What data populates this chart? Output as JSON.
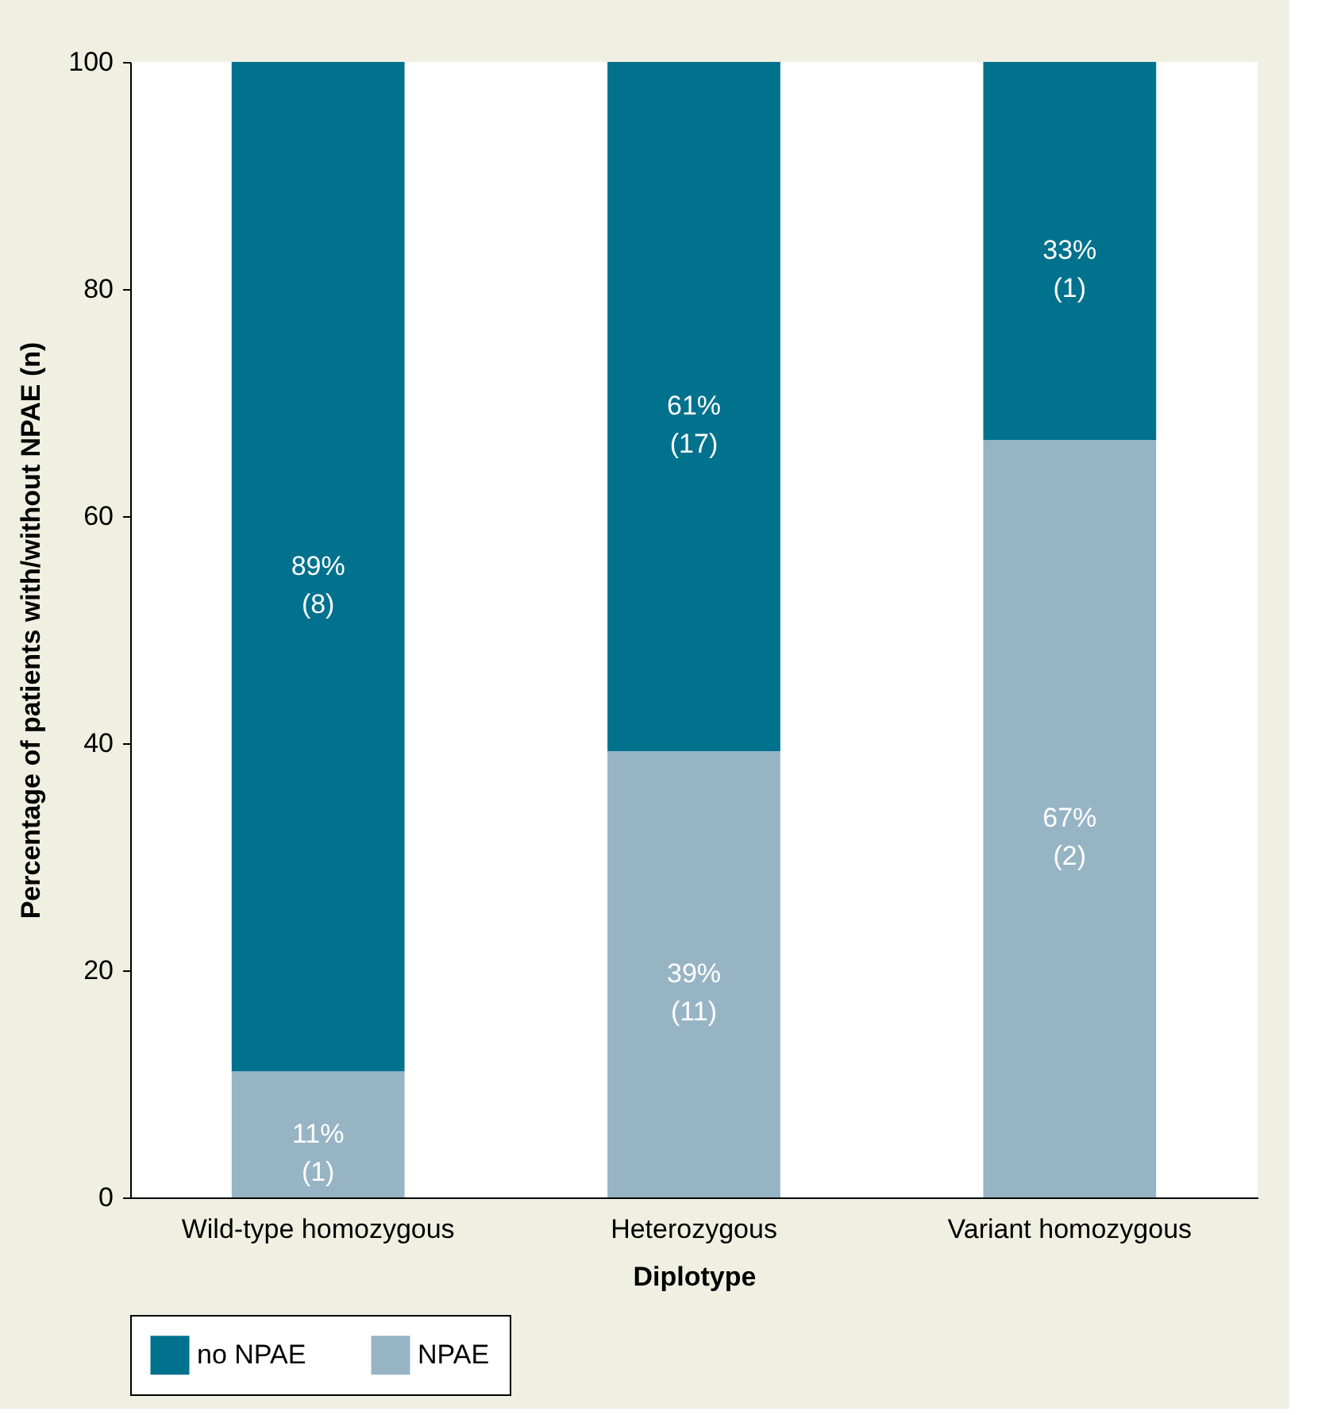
{
  "chart_data": {
    "type": "bar",
    "stacked": true,
    "xlabel": "Diplotype",
    "ylabel": "Percentage of patients with/without NPAE (n)",
    "categories": [
      "Wild-type homozygous",
      "Heterozygous",
      "Variant homozygous"
    ],
    "series": [
      {
        "name": "NPAE",
        "color": "#97b4c5",
        "values": [
          11.1,
          39.3,
          66.7
        ],
        "value_labels": [
          "11%\n(1)",
          "39%\n(11)",
          "67%\n(2)"
        ]
      },
      {
        "name": "no NPAE",
        "color": "#00728e",
        "values": [
          88.9,
          60.7,
          33.3
        ],
        "value_labels": [
          "89%\n(8)",
          "61%\n(17)",
          "33%\n(1)"
        ]
      }
    ],
    "ylim": [
      0,
      100
    ],
    "yticks": [
      0,
      20,
      40,
      60,
      80,
      100
    ],
    "grid": false,
    "legend": "bottom"
  }
}
